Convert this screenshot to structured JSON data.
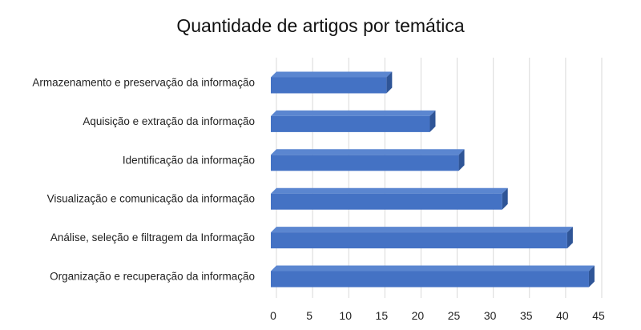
{
  "chart_data": {
    "type": "bar",
    "orientation": "horizontal",
    "style": "3d",
    "title": "Quantidade de artigos por temática",
    "xlabel": "",
    "ylabel": "",
    "categories": [
      "Armazenamento e preservação da informação",
      "Aquisição e extração da informação",
      "Identificação da informação",
      "Visualização e comunicação da informação",
      "Análise, seleção e filtragem da Informação",
      "Organização e recuperação da informação"
    ],
    "values": [
      16,
      22,
      26,
      32,
      41,
      44
    ],
    "xlim": [
      0,
      45
    ],
    "xticks": [
      "0",
      "5",
      "10",
      "15",
      "20",
      "25",
      "30",
      "35",
      "40",
      "45"
    ],
    "grid": true,
    "legend": "none",
    "colors": {
      "bar_front": "#4472c4",
      "bar_top": "#5b86d0",
      "bar_side": "#2f5597",
      "grid": "#d9d9d9"
    }
  }
}
